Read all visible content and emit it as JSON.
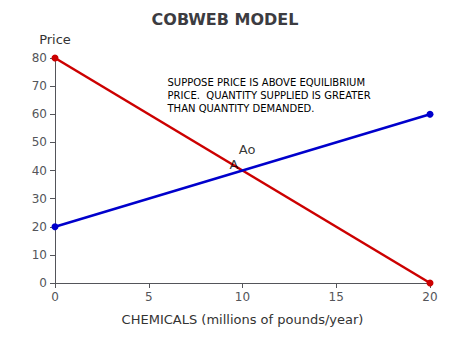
{
  "chart_data": {
    "type": "line",
    "title": "COBWEB MODEL",
    "xlabel": "CHEMICALS (millions of pounds/year)",
    "ylabel": "Price",
    "x": [
      0,
      20
    ],
    "series": [
      {
        "color": "#cc0000",
        "values": [
          80,
          0
        ]
      },
      {
        "color": "#0000cc",
        "values": [
          20,
          60
        ]
      }
    ],
    "marker": "circle",
    "xlim": [
      0,
      20
    ],
    "ylim": [
      0,
      80
    ],
    "xticks": [
      0,
      5,
      10,
      15,
      20
    ],
    "yticks": [
      0,
      10,
      20,
      30,
      40,
      50,
      60,
      70,
      80
    ],
    "grid": false,
    "annotations": [
      {
        "text": "Ao",
        "x": 9.8,
        "y": 45
      },
      {
        "text": "A",
        "x": 9.3,
        "y": 40
      },
      {
        "text": "SUPPOSE PRICE IS ABOVE EQUILIBRIUM\nPRICE.  QUANTITY SUPPLIED IS GREATER\nTHAN QUANTITY DEMANDED."
      }
    ]
  }
}
